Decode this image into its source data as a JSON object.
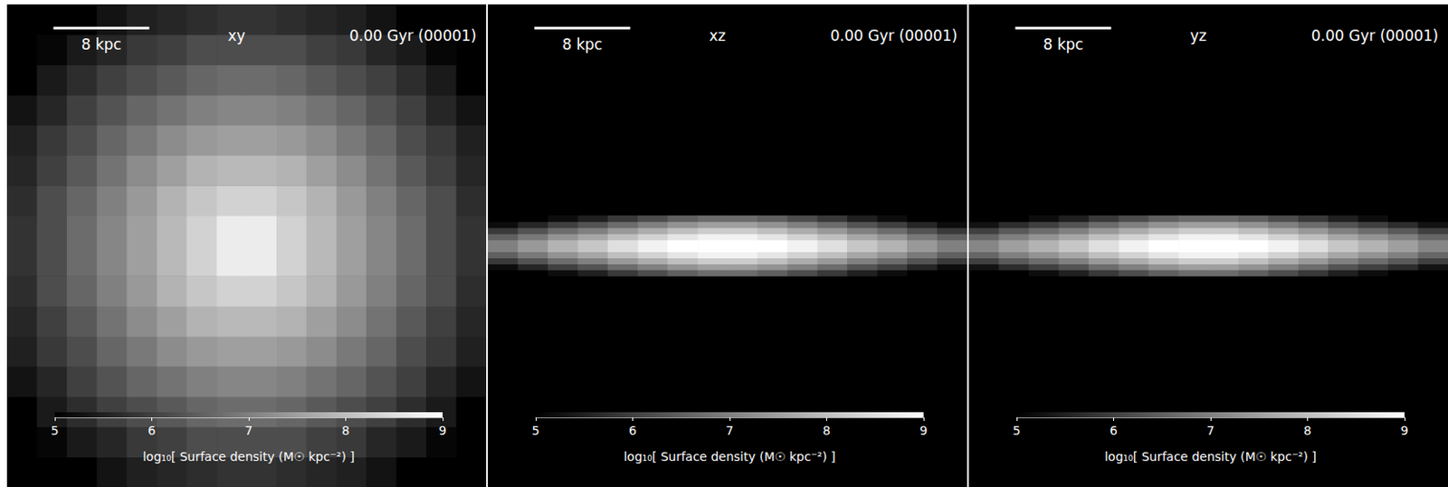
{
  "chart_data": [
    {
      "type": "heatmap",
      "title": "xy",
      "subtitle": "0.00 Gyr (00001)",
      "xlim": [
        -20,
        20
      ],
      "ylim": [
        -20,
        20
      ],
      "tick_labels": false,
      "grid": false,
      "x_bins": [
        -20,
        -17.5,
        -15,
        -12.5,
        -10,
        -7.5,
        -5,
        -2.5,
        0,
        2.5,
        5,
        7.5,
        10,
        12.5,
        15,
        17.5,
        20
      ],
      "y_bins": [
        -20,
        -17.5,
        -15,
        -12.5,
        -10,
        -7.5,
        -5,
        -2.5,
        0,
        2.5,
        5,
        7.5,
        10,
        12.5,
        15,
        17.5,
        20
      ],
      "values": [
        [
          null,
          null,
          5.0,
          5.3,
          5.5,
          5.6,
          5.7,
          5.8,
          5.8,
          5.7,
          5.6,
          5.5,
          5.3,
          5.0,
          null,
          null
        ],
        [
          null,
          5.1,
          5.4,
          5.6,
          5.9,
          6.0,
          6.2,
          6.2,
          6.2,
          6.2,
          6.0,
          5.9,
          5.6,
          5.4,
          5.1,
          null
        ],
        [
          5.0,
          5.4,
          5.7,
          6.0,
          6.2,
          6.4,
          6.6,
          6.7,
          6.7,
          6.6,
          6.4,
          6.2,
          6.0,
          5.7,
          5.4,
          5.0
        ],
        [
          5.3,
          5.6,
          6.0,
          6.3,
          6.6,
          6.8,
          7.0,
          7.1,
          7.1,
          7.0,
          6.8,
          6.6,
          6.3,
          6.0,
          5.6,
          5.3
        ],
        [
          5.5,
          5.9,
          6.2,
          6.6,
          6.9,
          7.2,
          7.4,
          7.5,
          7.5,
          7.4,
          7.2,
          6.9,
          6.6,
          6.2,
          5.9,
          5.5
        ],
        [
          5.6,
          6.0,
          6.4,
          6.8,
          7.2,
          7.5,
          7.8,
          7.9,
          7.9,
          7.8,
          7.5,
          7.2,
          6.8,
          6.4,
          6.0,
          5.6
        ],
        [
          5.7,
          6.2,
          6.6,
          7.0,
          7.4,
          7.8,
          8.1,
          8.3,
          8.3,
          8.1,
          7.8,
          7.4,
          7.0,
          6.6,
          6.2,
          5.7
        ],
        [
          5.8,
          6.2,
          6.7,
          7.1,
          7.5,
          7.9,
          8.3,
          8.7,
          8.7,
          8.3,
          7.9,
          7.5,
          7.1,
          6.7,
          6.2,
          5.8
        ],
        [
          5.8,
          6.2,
          6.7,
          7.1,
          7.5,
          7.9,
          8.3,
          8.7,
          8.7,
          8.3,
          7.9,
          7.5,
          7.1,
          6.7,
          6.2,
          5.8
        ],
        [
          5.7,
          6.2,
          6.6,
          7.0,
          7.4,
          7.8,
          8.1,
          8.3,
          8.3,
          8.1,
          7.8,
          7.4,
          7.0,
          6.6,
          6.2,
          5.7
        ],
        [
          5.6,
          6.0,
          6.4,
          6.8,
          7.2,
          7.5,
          7.8,
          7.9,
          7.9,
          7.8,
          7.5,
          7.2,
          6.8,
          6.4,
          6.0,
          5.6
        ],
        [
          5.5,
          5.9,
          6.2,
          6.6,
          6.9,
          7.2,
          7.4,
          7.5,
          7.5,
          7.4,
          7.2,
          6.9,
          6.6,
          6.2,
          5.9,
          5.5
        ],
        [
          5.3,
          5.6,
          6.0,
          6.3,
          6.6,
          6.8,
          7.0,
          7.1,
          7.1,
          7.0,
          6.8,
          6.6,
          6.3,
          6.0,
          5.6,
          5.3
        ],
        [
          5.0,
          5.4,
          5.7,
          6.0,
          6.2,
          6.4,
          6.6,
          6.7,
          6.7,
          6.6,
          6.4,
          6.2,
          6.0,
          5.7,
          5.4,
          5.0
        ],
        [
          null,
          5.1,
          5.4,
          5.6,
          5.9,
          6.0,
          6.2,
          6.2,
          6.2,
          6.2,
          6.0,
          5.9,
          5.6,
          5.4,
          5.1,
          null
        ],
        [
          null,
          null,
          5.0,
          5.3,
          5.5,
          5.6,
          5.7,
          5.8,
          5.8,
          5.7,
          5.6,
          5.5,
          5.3,
          5.0,
          null,
          null
        ]
      ],
      "scale_bar": {
        "length": 8,
        "label": "8 kpc"
      },
      "colorbar": {
        "range": [
          5,
          9
        ],
        "ticks": [
          5,
          6,
          7,
          8,
          9
        ],
        "label": "log₁₀[ Surface density (M☉ kpc⁻²) ]"
      }
    },
    {
      "type": "heatmap",
      "title": "xz",
      "subtitle": "0.00 Gyr (00001)",
      "xlim": [
        -20,
        20
      ],
      "ylim": [
        -20,
        20
      ],
      "tick_labels": false,
      "grid": false,
      "x_bins": [
        -20,
        -17.5,
        -15,
        -12.5,
        -10,
        -7.5,
        -5,
        -2.5,
        0,
        2.5,
        5,
        7.5,
        10,
        12.5,
        15,
        17.5,
        20
      ],
      "y_bins": [
        -2.5,
        -2,
        -1.5,
        -1,
        -0.5,
        0,
        0.5,
        1,
        1.5,
        2,
        2.5
      ],
      "values": [
        [
          4.4,
          4.8,
          5.2,
          5.5,
          5.9,
          6.2,
          6.5,
          6.7,
          6.7,
          6.5,
          6.2,
          5.9,
          5.5,
          5.2,
          4.8,
          4.4
        ],
        [
          5.2,
          5.6,
          6.0,
          6.3,
          6.7,
          7.0,
          7.3,
          7.5,
          7.5,
          7.3,
          7.0,
          6.7,
          6.3,
          6.0,
          5.6,
          5.2
        ],
        [
          5.9,
          6.3,
          6.7,
          7.0,
          7.4,
          7.7,
          8.0,
          8.2,
          8.2,
          8.0,
          7.7,
          7.4,
          7.0,
          6.7,
          6.3,
          5.9
        ],
        [
          6.5,
          6.9,
          7.3,
          7.6,
          8.0,
          8.3,
          8.6,
          8.8,
          8.8,
          8.6,
          8.3,
          8.0,
          7.6,
          7.3,
          6.9,
          6.5
        ],
        [
          7.0,
          7.4,
          7.8,
          8.1,
          8.5,
          8.8,
          9.1,
          9.3,
          9.3,
          9.1,
          8.8,
          8.5,
          8.1,
          7.8,
          7.4,
          7.0
        ],
        [
          7.0,
          7.4,
          7.8,
          8.1,
          8.5,
          8.8,
          9.1,
          9.3,
          9.3,
          9.1,
          8.8,
          8.5,
          8.1,
          7.8,
          7.4,
          7.0
        ],
        [
          6.5,
          6.9,
          7.3,
          7.6,
          8.0,
          8.3,
          8.6,
          8.8,
          8.8,
          8.6,
          8.3,
          8.0,
          7.6,
          7.3,
          6.9,
          6.5
        ],
        [
          5.9,
          6.3,
          6.7,
          7.0,
          7.4,
          7.7,
          8.0,
          8.2,
          8.2,
          8.0,
          7.7,
          7.4,
          7.0,
          6.7,
          6.3,
          5.9
        ],
        [
          5.2,
          5.6,
          6.0,
          6.3,
          6.7,
          7.0,
          7.3,
          7.5,
          7.5,
          7.3,
          7.0,
          6.7,
          6.3,
          6.0,
          5.6,
          5.2
        ],
        [
          4.4,
          4.8,
          5.2,
          5.5,
          5.9,
          6.2,
          6.5,
          6.7,
          6.7,
          6.5,
          6.2,
          5.9,
          5.5,
          5.2,
          4.8,
          4.4
        ]
      ],
      "scale_bar": {
        "length": 8,
        "label": "8 kpc"
      },
      "colorbar": {
        "range": [
          5,
          9
        ],
        "ticks": [
          5,
          6,
          7,
          8,
          9
        ],
        "label": "log₁₀[ Surface density (M☉ kpc⁻²) ]"
      }
    },
    {
      "type": "heatmap",
      "title": "yz",
      "subtitle": "0.00 Gyr (00001)",
      "xlim": [
        -20,
        20
      ],
      "ylim": [
        -20,
        20
      ],
      "tick_labels": false,
      "grid": false,
      "x_bins": [
        -20,
        -17.5,
        -15,
        -12.5,
        -10,
        -7.5,
        -5,
        -2.5,
        0,
        2.5,
        5,
        7.5,
        10,
        12.5,
        15,
        17.5,
        20
      ],
      "y_bins": [
        -2.5,
        -2,
        -1.5,
        -1,
        -0.5,
        0,
        0.5,
        1,
        1.5,
        2,
        2.5
      ],
      "values": [
        [
          4.5,
          4.9,
          5.2,
          5.5,
          5.9,
          6.2,
          6.5,
          6.7,
          6.7,
          6.5,
          6.2,
          5.9,
          5.5,
          5.2,
          4.9,
          4.5
        ],
        [
          5.3,
          5.7,
          6.0,
          6.3,
          6.7,
          7.0,
          7.3,
          7.5,
          7.5,
          7.3,
          7.0,
          6.7,
          6.3,
          6.0,
          5.7,
          5.3
        ],
        [
          6.0,
          6.4,
          6.7,
          7.0,
          7.4,
          7.7,
          8.0,
          8.2,
          8.2,
          8.0,
          7.7,
          7.4,
          7.0,
          6.7,
          6.4,
          6.0
        ],
        [
          6.6,
          7.0,
          7.3,
          7.6,
          8.0,
          8.3,
          8.6,
          8.8,
          8.8,
          8.6,
          8.3,
          8.0,
          7.6,
          7.3,
          7.0,
          6.6
        ],
        [
          7.1,
          7.5,
          7.8,
          8.1,
          8.5,
          8.8,
          9.1,
          9.3,
          9.3,
          9.1,
          8.8,
          8.5,
          8.1,
          7.8,
          7.5,
          7.1
        ],
        [
          7.1,
          7.5,
          7.8,
          8.1,
          8.5,
          8.8,
          9.1,
          9.3,
          9.3,
          9.1,
          8.8,
          8.5,
          8.1,
          7.8,
          7.5,
          7.1
        ],
        [
          6.6,
          7.0,
          7.3,
          7.6,
          8.0,
          8.3,
          8.6,
          8.8,
          8.8,
          8.6,
          8.3,
          8.0,
          7.6,
          7.3,
          7.0,
          6.6
        ],
        [
          6.0,
          6.4,
          6.7,
          7.0,
          7.4,
          7.7,
          8.0,
          8.2,
          8.2,
          8.0,
          7.7,
          7.4,
          7.0,
          6.7,
          6.4,
          6.0
        ],
        [
          5.3,
          5.7,
          6.0,
          6.3,
          6.7,
          7.0,
          7.3,
          7.5,
          7.5,
          7.3,
          7.0,
          6.7,
          6.3,
          6.0,
          5.7,
          5.3
        ],
        [
          4.5,
          4.9,
          5.2,
          5.5,
          5.9,
          6.2,
          6.5,
          6.7,
          6.7,
          6.5,
          6.2,
          5.9,
          5.5,
          5.2,
          4.9,
          4.5
        ]
      ],
      "scale_bar": {
        "length": 8,
        "label": "8 kpc"
      },
      "colorbar": {
        "range": [
          5,
          9
        ],
        "ticks": [
          5,
          6,
          7,
          8,
          9
        ],
        "label": "log₁₀[ Surface density (M☉ kpc⁻²) ]"
      }
    }
  ]
}
